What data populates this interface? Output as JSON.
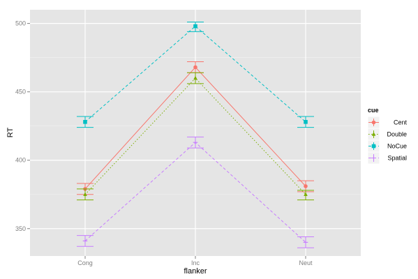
{
  "chart_data": {
    "type": "line",
    "title": "",
    "xlabel": "flanker",
    "ylabel": "RT",
    "categories": [
      "Cong",
      "Inc",
      "Neut"
    ],
    "ylim": [
      330,
      510
    ],
    "yticks": [
      350,
      400,
      450,
      500
    ],
    "grid": true,
    "legend_title": "cue",
    "legend_position": "right",
    "series": [
      {
        "name": "Cent",
        "color": "#F8766D",
        "dash": "solid",
        "marker": "circle",
        "values": [
          379,
          468,
          381
        ],
        "errors": [
          [
            375,
            383
          ],
          [
            464,
            472
          ],
          [
            377,
            385
          ]
        ]
      },
      {
        "name": "Double",
        "color": "#7CAE00",
        "dash": "dotted",
        "marker": "triangle",
        "values": [
          375,
          460,
          375
        ],
        "errors": [
          [
            371,
            379
          ],
          [
            456,
            464
          ],
          [
            371,
            378
          ]
        ]
      },
      {
        "name": "NoCue",
        "color": "#00BFC4",
        "dash": "dashed",
        "marker": "square",
        "values": [
          428,
          498,
          428
        ],
        "errors": [
          [
            424,
            432
          ],
          [
            494,
            501
          ],
          [
            424,
            432
          ]
        ]
      },
      {
        "name": "Spatial",
        "color": "#C77CFF",
        "dash": "dashed",
        "marker": "plus",
        "values": [
          341,
          413,
          340
        ],
        "errors": [
          [
            337,
            345
          ],
          [
            409,
            417
          ],
          [
            336,
            344
          ]
        ]
      }
    ]
  }
}
